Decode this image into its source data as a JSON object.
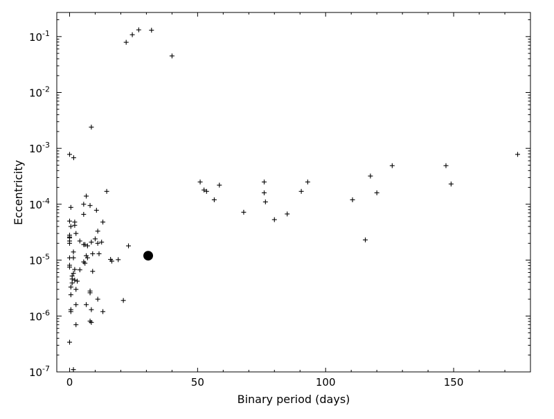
{
  "chart_data": {
    "type": "scatter",
    "xlabel": "Binary period (days)",
    "ylabel": "Eccentricity",
    "x_scale": "linear",
    "y_scale": "log",
    "xlim": [
      -5,
      180
    ],
    "ylim": [
      1e-07,
      0.27
    ],
    "x_ticks": [
      {
        "value": 0,
        "label": "0"
      },
      {
        "value": 50,
        "label": "50"
      },
      {
        "value": 100,
        "label": "100"
      },
      {
        "value": 150,
        "label": "150"
      }
    ],
    "y_ticks": [
      {
        "value": 1e-07,
        "base": "10",
        "exp": "-7"
      },
      {
        "value": 1e-06,
        "base": "10",
        "exp": "-6"
      },
      {
        "value": 1e-05,
        "base": "10",
        "exp": "-5"
      },
      {
        "value": 0.0001,
        "base": "10",
        "exp": "-4"
      },
      {
        "value": 0.001,
        "base": "10",
        "exp": "-3"
      },
      {
        "value": 0.01,
        "base": "10",
        "exp": "-2"
      },
      {
        "value": 0.1,
        "base": "10",
        "exp": "-1"
      }
    ],
    "grid": false,
    "series": [
      {
        "marker": "plus",
        "color": "#000000",
        "points": [
          [
            22.1,
            0.079
          ],
          [
            24.5,
            0.108
          ],
          [
            27.0,
            0.132
          ],
          [
            32.0,
            0.13
          ],
          [
            40.0,
            0.045
          ],
          [
            8.5,
            0.0024
          ],
          [
            0.0,
            0.00078
          ],
          [
            1.6,
            0.00068
          ],
          [
            175.0,
            0.00078
          ],
          [
            126.0,
            0.00049
          ],
          [
            147.0,
            0.00049
          ],
          [
            117.5,
            0.00032
          ],
          [
            149.0,
            0.00023
          ],
          [
            51.0,
            0.00025
          ],
          [
            52.5,
            0.00018
          ],
          [
            53.5,
            0.00017
          ],
          [
            58.5,
            0.00022
          ],
          [
            76.0,
            0.00025
          ],
          [
            76.0,
            0.00016
          ],
          [
            76.5,
            0.00011
          ],
          [
            56.5,
            0.00012
          ],
          [
            68.0,
            7.2e-05
          ],
          [
            80.0,
            5.3e-05
          ],
          [
            85.0,
            6.7e-05
          ],
          [
            90.5,
            0.00017
          ],
          [
            93.0,
            0.00025
          ],
          [
            110.5,
            0.00012
          ],
          [
            120.0,
            0.00016
          ],
          [
            115.5,
            2.3e-05
          ],
          [
            14.5,
            0.00017
          ],
          [
            6.5,
            0.00014
          ],
          [
            5.5,
            0.0001
          ],
          [
            8.0,
            9.5e-05
          ],
          [
            10.5,
            7.8e-05
          ],
          [
            5.5,
            6.6e-05
          ],
          [
            0.5,
            8.8e-05
          ],
          [
            13.0,
            4.8e-05
          ],
          [
            2.0,
            4.8e-05
          ],
          [
            0.0,
            5e-05
          ],
          [
            0.5,
            4e-05
          ],
          [
            2.0,
            4.2e-05
          ],
          [
            11.0,
            3.3e-05
          ],
          [
            2.5,
            3e-05
          ],
          [
            0.0,
            2.8e-05
          ],
          [
            0.0,
            2.6e-05
          ],
          [
            0.0,
            2.5e-05
          ],
          [
            0.0,
            2.2e-05
          ],
          [
            0.0,
            2e-05
          ],
          [
            4.0,
            2.2e-05
          ],
          [
            5.5,
            1.9e-05
          ],
          [
            6.0,
            1.9e-05
          ],
          [
            7.0,
            1.8e-05
          ],
          [
            8.5,
            2.1e-05
          ],
          [
            10.0,
            2.4e-05
          ],
          [
            11.0,
            2e-05
          ],
          [
            12.5,
            2.1e-05
          ],
          [
            23.0,
            1.8e-05
          ],
          [
            1.5,
            1.4e-05
          ],
          [
            9.0,
            1.3e-05
          ],
          [
            6.5,
            1.2e-05
          ],
          [
            11.5,
            1.3e-05
          ],
          [
            0.0,
            1.1e-05
          ],
          [
            1.5,
            1.1e-05
          ],
          [
            7.0,
            1.1e-05
          ],
          [
            16.0,
            1.03e-05
          ],
          [
            16.5,
            9.6e-06
          ],
          [
            19.0,
            1.02e-05
          ],
          [
            5.5,
            9.3e-06
          ],
          [
            6.0,
            8.8e-06
          ],
          [
            0.0,
            8.1e-06
          ],
          [
            0.0,
            7.5e-06
          ],
          [
            2.0,
            6.8e-06
          ],
          [
            4.0,
            6.7e-06
          ],
          [
            9.0,
            6.3e-06
          ],
          [
            1.5,
            5.8e-06
          ],
          [
            1.0,
            5.2e-06
          ],
          [
            1.0,
            4.6e-06
          ],
          [
            2.0,
            4.4e-06
          ],
          [
            3.0,
            4.2e-06
          ],
          [
            1.0,
            3.9e-06
          ],
          [
            2.5,
            3e-06
          ],
          [
            0.5,
            3.3e-06
          ],
          [
            0.5,
            2.4e-06
          ],
          [
            8.0,
            2.8e-06
          ],
          [
            8.0,
            2.6e-06
          ],
          [
            11.0,
            2e-06
          ],
          [
            21.0,
            1.9e-06
          ],
          [
            2.5,
            1.6e-06
          ],
          [
            6.5,
            1.6e-06
          ],
          [
            0.5,
            1.3e-06
          ],
          [
            0.5,
            1.2e-06
          ],
          [
            8.5,
            1.3e-06
          ],
          [
            13.0,
            1.2e-06
          ],
          [
            8.0,
            8.1e-07
          ],
          [
            8.5,
            7.7e-07
          ],
          [
            2.5,
            7e-07
          ],
          [
            0.0,
            3.4e-07
          ],
          [
            1.5,
            1.1e-07
          ]
        ]
      },
      {
        "marker": "circle",
        "color": "#000000",
        "points": [
          [
            30.7,
            1.2e-05
          ]
        ]
      }
    ]
  }
}
